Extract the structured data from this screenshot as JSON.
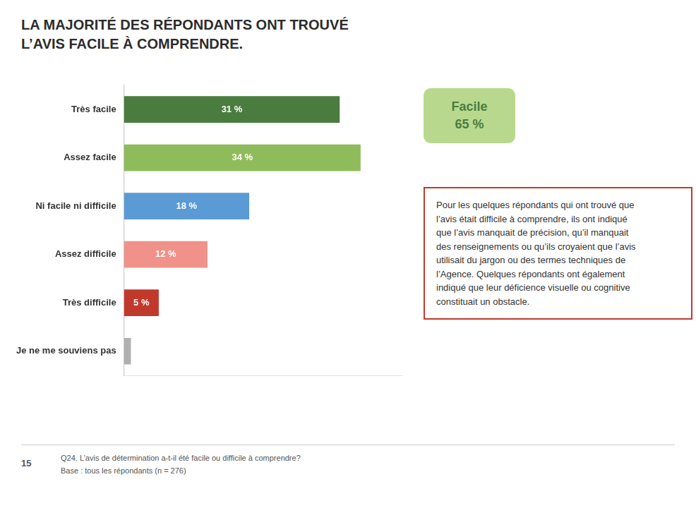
{
  "chart_data": {
    "type": "bar",
    "orientation": "horizontal",
    "title": [
      "LA MAJORITÉ DES RÉPONDANTS ONT TROUVÉ",
      "L’AVIS FACILE À COMPRENDRE."
    ],
    "categories": [
      "Très facile",
      "Assez facile",
      "Ni facile ni difficile",
      "Assez difficile",
      "Très difficile",
      "Je ne me souviens pas"
    ],
    "values": [
      31,
      34,
      18,
      12,
      5,
      1
    ],
    "value_labels": [
      "31 %",
      "34 %",
      "18 %",
      "12 %",
      "5 %",
      null
    ],
    "data_labels": true,
    "colors": [
      "#4a7c3f",
      "#8fbc5a",
      "#5b9bd5",
      "#f0928a",
      "#c0392b",
      "#b0b0b0"
    ],
    "xlim": [
      0,
      40
    ],
    "tick_labels": "y",
    "grid": false,
    "annotations": [
      "Facile\n65 %",
      "Pour les quelques répondants qui ont trouvé que\nl’avis était difficile à comprendre, ils ont indiqué\nque l’avis manquait de précision, qu’il manquait\ndes renseignements ou qu’ils croyaient que l’avis\nutilisait du jargon ou des termes techniques de\nl’Agence. Quelques répondants ont également\nindiqué que leur déficience visuelle ou cognitive\nconstituait un obstacle.",
      "Q24. L’avis de détermination a-t-il été facile ou difficile à comprendre?",
      "Base : tous les répondants (n = 276)",
      "15"
    ]
  }
}
